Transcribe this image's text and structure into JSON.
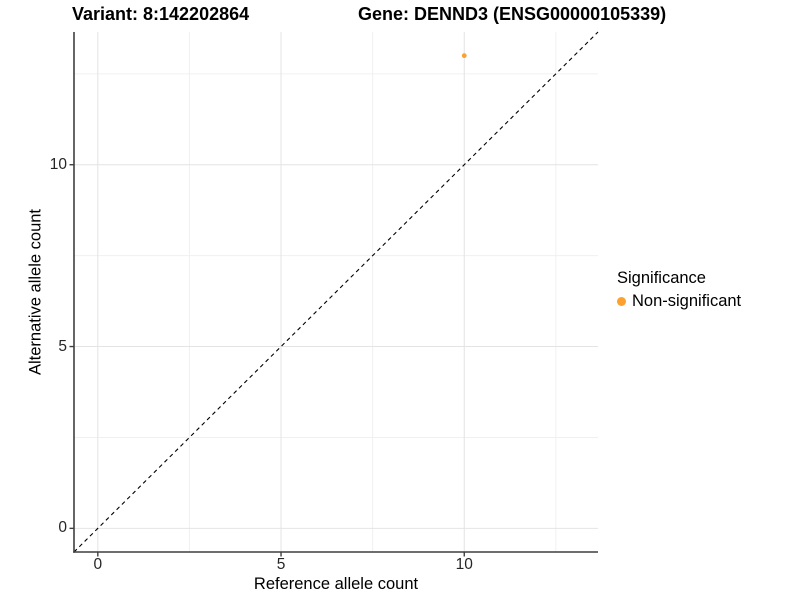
{
  "titles": {
    "variant": "Variant: 8:142202864",
    "gene": "Gene: DENND3 (ENSG00000105339)"
  },
  "legend": {
    "title": "Significance",
    "items": [
      {
        "label": "Non-significant",
        "color": "#FCA12E"
      }
    ]
  },
  "style": {
    "point_color": "#FCA12E",
    "grid_major": "#e4e4e4",
    "grid_minor": "#f0f0f0",
    "axis_color": "#3f3f3f",
    "reference_line_color": "#000000",
    "background": "#ffffff"
  },
  "chart_data": {
    "type": "scatter",
    "title": "Variant: 8:142202864 — Gene: DENND3 (ENSG00000105339)",
    "xlabel": "Reference allele count",
    "ylabel": "Alternative allele count",
    "points": [
      {
        "x": 10,
        "y": 13,
        "series": "Non-significant",
        "color": "#FCA12E"
      }
    ],
    "reference_line": {
      "kind": "identity",
      "style": "dashed",
      "from": -0.65,
      "to": 13.65
    },
    "x_ticks": [
      0,
      5,
      10
    ],
    "y_ticks": [
      0,
      5,
      10
    ],
    "x_minor_ticks": [
      2.5,
      7.5,
      12.5
    ],
    "y_minor_ticks": [
      2.5,
      7.5,
      12.5
    ],
    "xlim": [
      -0.65,
      13.65
    ],
    "ylim": [
      -0.65,
      13.65
    ],
    "grid": true,
    "legend_position": "right"
  }
}
